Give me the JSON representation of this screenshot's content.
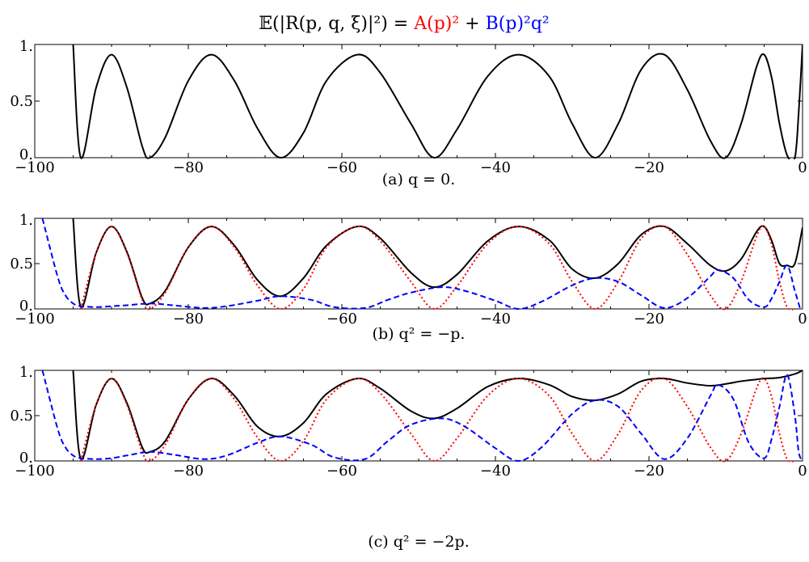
{
  "figure": {
    "title_parts": [
      {
        "text": "𝔼(|R(p, q, ξ)|²) = ",
        "color": "#000000"
      },
      {
        "text": "A(p)²",
        "color": "#ff0000"
      },
      {
        "text": " + ",
        "color": "#000000"
      },
      {
        "text": "B(p)²q²",
        "color": "#0000ff"
      }
    ]
  },
  "chart_data": [
    {
      "type": "line",
      "caption": "(a) q = 0.",
      "xlim": [
        -100,
        0
      ],
      "ylim": [
        0,
        1
      ],
      "x_ticks": [
        -100,
        -80,
        -60,
        -40,
        -20,
        0
      ],
      "x_tick_labels": [
        "−100",
        "−80",
        "−60",
        "−40",
        "−20",
        "0"
      ],
      "y_ticks": [
        0,
        0.5,
        1
      ],
      "y_tick_labels": [
        "0.",
        "0.5",
        "1."
      ],
      "grid": false,
      "legend": "none",
      "series": [
        {
          "color": "#000000",
          "style": "solid",
          "x": [
            -95,
            -94,
            -92,
            -90,
            -88,
            -86,
            -85,
            -83,
            -80,
            -77,
            -74,
            -71,
            -68,
            -65,
            -62,
            -58,
            -55,
            -51,
            -48,
            -45,
            -41,
            -37,
            -33,
            -30,
            -27,
            -24,
            -21,
            -18,
            -15,
            -12,
            -10,
            -8,
            -6,
            -5,
            -4,
            -3,
            -2,
            -1,
            -0.5,
            0
          ],
          "y": [
            1.0,
            0.0,
            0.62,
            0.91,
            0.62,
            0.1,
            0.0,
            0.18,
            0.68,
            0.91,
            0.68,
            0.26,
            0.0,
            0.22,
            0.68,
            0.91,
            0.75,
            0.3,
            0.0,
            0.25,
            0.72,
            0.91,
            0.72,
            0.3,
            0.0,
            0.3,
            0.78,
            0.91,
            0.6,
            0.15,
            0.0,
            0.3,
            0.8,
            0.91,
            0.7,
            0.3,
            0.02,
            0.0,
            0.4,
            1.0
          ]
        }
      ]
    },
    {
      "type": "line",
      "caption": "(b) q² = −p.",
      "xlim": [
        -100,
        0
      ],
      "ylim": [
        0,
        1
      ],
      "x_ticks": [
        -100,
        -80,
        -60,
        -40,
        -20,
        0
      ],
      "x_tick_labels": [
        "−100",
        "−80",
        "−60",
        "−40",
        "−20",
        "0"
      ],
      "y_ticks": [
        0,
        0.5,
        1
      ],
      "y_tick_labels": [
        "0.",
        "0.5",
        "1."
      ],
      "grid": false,
      "legend": "none",
      "series": [
        {
          "color": "#000000",
          "style": "solid",
          "x": [
            -95,
            -94,
            -92,
            -90,
            -88,
            -86,
            -85,
            -83,
            -80,
            -77,
            -74,
            -71,
            -68,
            -65,
            -62,
            -58,
            -55,
            -51,
            -48,
            -45,
            -41,
            -37,
            -33,
            -30,
            -27,
            -24,
            -21,
            -18,
            -15,
            -12,
            -10,
            -8,
            -6,
            -5,
            -4,
            -3,
            -2,
            -1,
            0
          ],
          "y": [
            1.0,
            0.02,
            0.62,
            0.91,
            0.63,
            0.12,
            0.06,
            0.2,
            0.68,
            0.91,
            0.7,
            0.32,
            0.14,
            0.34,
            0.7,
            0.91,
            0.78,
            0.4,
            0.24,
            0.38,
            0.75,
            0.91,
            0.76,
            0.44,
            0.34,
            0.5,
            0.82,
            0.91,
            0.72,
            0.48,
            0.42,
            0.55,
            0.85,
            0.91,
            0.75,
            0.5,
            0.48,
            0.5,
            0.9
          ]
        },
        {
          "color": "#ff0000",
          "style": "dotted",
          "x": [
            -94,
            -92,
            -90,
            -88,
            -86,
            -85,
            -83,
            -80,
            -77,
            -74,
            -71,
            -68,
            -65,
            -62,
            -58,
            -55,
            -51,
            -48,
            -45,
            -41,
            -37,
            -33,
            -30,
            -27,
            -24,
            -21,
            -18,
            -15,
            -12,
            -10,
            -8,
            -6,
            -5,
            -4,
            -3,
            -2,
            -1
          ],
          "y": [
            0.0,
            0.62,
            0.91,
            0.62,
            0.1,
            0.0,
            0.18,
            0.68,
            0.91,
            0.68,
            0.26,
            0.0,
            0.22,
            0.68,
            0.91,
            0.75,
            0.3,
            0.0,
            0.25,
            0.72,
            0.91,
            0.72,
            0.3,
            0.0,
            0.3,
            0.78,
            0.91,
            0.6,
            0.15,
            0.0,
            0.3,
            0.8,
            0.91,
            0.7,
            0.3,
            0.02,
            0.0
          ]
        },
        {
          "color": "#0000ff",
          "style": "dashed",
          "x": [
            -99,
            -97,
            -96,
            -95,
            -94,
            -92,
            -90,
            -88,
            -85,
            -82,
            -78,
            -75,
            -71,
            -68,
            -64,
            -61,
            -57,
            -54,
            -51,
            -47,
            -44,
            -40,
            -37,
            -34,
            -30,
            -27,
            -24,
            -21,
            -18,
            -15,
            -12,
            -11,
            -9,
            -7,
            -5,
            -4,
            -3,
            -2,
            -1,
            -0.3
          ],
          "y": [
            1.0,
            0.35,
            0.15,
            0.06,
            0.03,
            0.02,
            0.03,
            0.04,
            0.06,
            0.04,
            0.01,
            0.03,
            0.09,
            0.14,
            0.1,
            0.02,
            0.01,
            0.1,
            0.18,
            0.24,
            0.2,
            0.09,
            0.0,
            0.08,
            0.26,
            0.34,
            0.3,
            0.15,
            0.01,
            0.12,
            0.36,
            0.43,
            0.34,
            0.1,
            0.02,
            0.12,
            0.3,
            0.48,
            0.2,
            0.0
          ]
        }
      ]
    },
    {
      "type": "line",
      "caption": "(c) q² = −2p.",
      "xlim": [
        -100,
        0
      ],
      "ylim": [
        0,
        1
      ],
      "x_ticks": [
        -100,
        -80,
        -60,
        -40,
        -20,
        0
      ],
      "x_tick_labels": [
        "−100",
        "−80",
        "−60",
        "−40",
        "−20",
        "0"
      ],
      "y_ticks": [
        0,
        0.5,
        1
      ],
      "y_tick_labels": [
        "0.",
        "0.5",
        "1."
      ],
      "grid": false,
      "legend": "none",
      "series": [
        {
          "color": "#000000",
          "style": "solid",
          "x": [
            -95,
            -94,
            -92,
            -90,
            -88,
            -86,
            -85,
            -83,
            -80,
            -77,
            -74,
            -71,
            -68,
            -65,
            -62,
            -58,
            -55,
            -51,
            -48,
            -45,
            -41,
            -37,
            -33,
            -30,
            -27,
            -24,
            -21,
            -18,
            -15,
            -12,
            -10,
            -8,
            -6,
            -5,
            -3,
            -1,
            0
          ],
          "y": [
            1.0,
            0.02,
            0.62,
            0.91,
            0.64,
            0.15,
            0.1,
            0.22,
            0.68,
            0.91,
            0.72,
            0.38,
            0.27,
            0.42,
            0.74,
            0.91,
            0.8,
            0.55,
            0.47,
            0.58,
            0.82,
            0.91,
            0.84,
            0.71,
            0.67,
            0.74,
            0.88,
            0.91,
            0.86,
            0.83,
            0.85,
            0.88,
            0.9,
            0.91,
            0.92,
            0.96,
            1.0
          ]
        },
        {
          "color": "#ff0000",
          "style": "dotted",
          "x": [
            -94,
            -92,
            -90,
            -88,
            -86,
            -85,
            -83,
            -80,
            -77,
            -74,
            -71,
            -68,
            -65,
            -62,
            -58,
            -55,
            -51,
            -48,
            -45,
            -41,
            -37,
            -33,
            -30,
            -27,
            -24,
            -21,
            -18,
            -15,
            -12,
            -10,
            -8,
            -6,
            -5,
            -4,
            -3,
            -2,
            -1
          ],
          "y": [
            0.0,
            0.62,
            0.91,
            0.62,
            0.1,
            0.0,
            0.18,
            0.68,
            0.91,
            0.68,
            0.26,
            0.0,
            0.22,
            0.68,
            0.91,
            0.75,
            0.3,
            0.0,
            0.25,
            0.72,
            0.91,
            0.72,
            0.3,
            0.0,
            0.3,
            0.78,
            0.91,
            0.6,
            0.15,
            0.0,
            0.3,
            0.8,
            0.91,
            0.7,
            0.3,
            0.02,
            0.0
          ]
        },
        {
          "color": "#0000ff",
          "style": "dashed",
          "x": [
            -99,
            -97,
            -96,
            -95,
            -94,
            -92,
            -90,
            -88,
            -85,
            -82,
            -78,
            -75,
            -71,
            -68,
            -64,
            -61,
            -57,
            -54,
            -51,
            -47,
            -44,
            -40,
            -37,
            -34,
            -30,
            -27,
            -24,
            -21,
            -18,
            -15,
            -12,
            -11,
            -9,
            -7,
            -5,
            -4,
            -3,
            -2,
            -1,
            -0.5,
            0
          ],
          "y": [
            1.0,
            0.35,
            0.15,
            0.06,
            0.03,
            0.02,
            0.03,
            0.06,
            0.1,
            0.07,
            0.02,
            0.06,
            0.2,
            0.27,
            0.18,
            0.04,
            0.02,
            0.22,
            0.4,
            0.47,
            0.38,
            0.14,
            0.0,
            0.15,
            0.52,
            0.67,
            0.6,
            0.3,
            0.02,
            0.25,
            0.72,
            0.84,
            0.68,
            0.2,
            0.03,
            0.25,
            0.6,
            0.95,
            0.5,
            0.1,
            0.0
          ]
        }
      ]
    }
  ]
}
